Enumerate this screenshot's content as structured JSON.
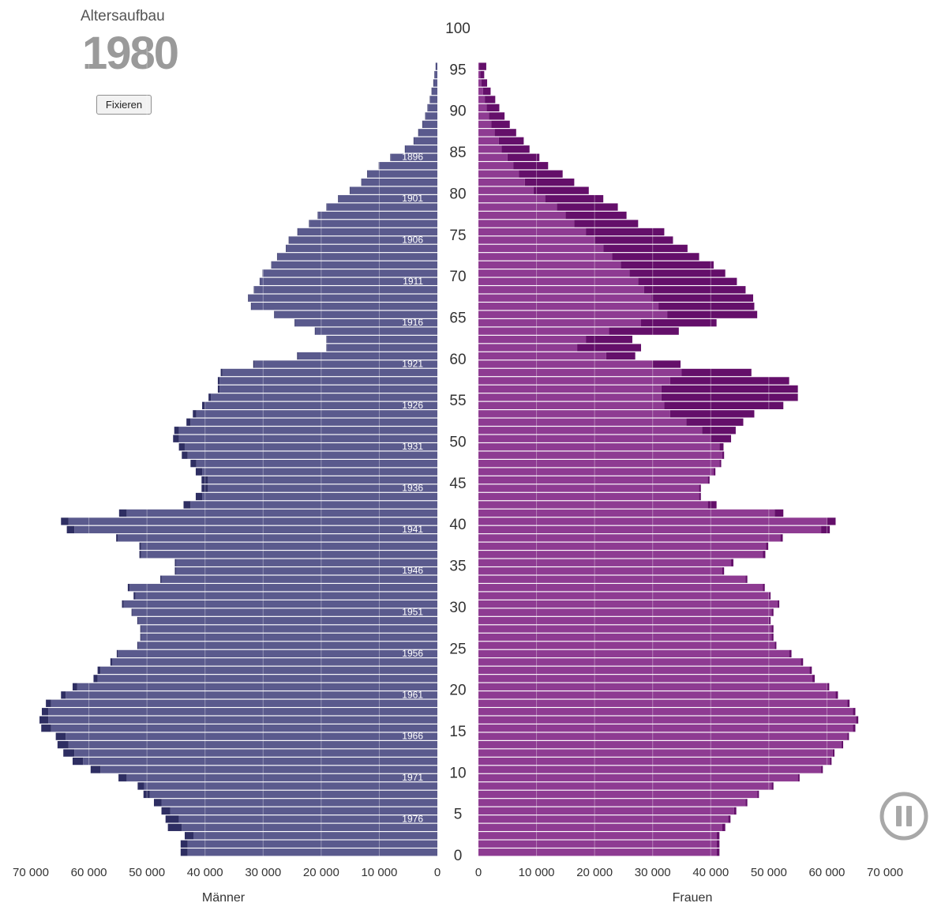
{
  "header": {
    "title": "Altersaufbau",
    "year": "1980",
    "fix_button_label": "Fixieren"
  },
  "controls": {
    "pause_icon": "pause-icon"
  },
  "colors": {
    "male_bar": "#5a5a8d",
    "male_excess": "#2e2e62",
    "female_bar": "#8e3b92",
    "female_excess": "#640f6a",
    "grid": "#ffffff",
    "axis_text": "#333333",
    "year_label": "#ffffff",
    "pause_button": "#a8a8a8"
  },
  "chart_data": {
    "type": "bar",
    "subtype": "population-pyramid",
    "x_ticks_left": [
      "70 000",
      "60 000",
      "50 000",
      "40 000",
      "30 000",
      "20 000",
      "10 000",
      "0"
    ],
    "x_ticks_right": [
      "0",
      "10 000",
      "20 000",
      "30 000",
      "40 000",
      "50 000",
      "60 000",
      "70 000"
    ],
    "xlabel_left": "Männer",
    "xlabel_right": "Frauen",
    "age_ticks": [
      "0",
      "5",
      "10",
      "15",
      "20",
      "25",
      "30",
      "35",
      "40",
      "45",
      "50",
      "55",
      "60",
      "65",
      "70",
      "75",
      "80",
      "85",
      "90",
      "95",
      "100"
    ],
    "birth_year_labels": [
      {
        "age": 4,
        "label": "1976"
      },
      {
        "age": 9,
        "label": "1971"
      },
      {
        "age": 14,
        "label": "1966"
      },
      {
        "age": 19,
        "label": "1961"
      },
      {
        "age": 24,
        "label": "1956"
      },
      {
        "age": 29,
        "label": "1951"
      },
      {
        "age": 34,
        "label": "1946"
      },
      {
        "age": 39,
        "label": "1941"
      },
      {
        "age": 44,
        "label": "1936"
      },
      {
        "age": 49,
        "label": "1931"
      },
      {
        "age": 54,
        "label": "1926"
      },
      {
        "age": 59,
        "label": "1921"
      },
      {
        "age": 64,
        "label": "1916"
      },
      {
        "age": 69,
        "label": "1911"
      },
      {
        "age": 74,
        "label": "1906"
      },
      {
        "age": 79,
        "label": "1901"
      },
      {
        "age": 84,
        "label": "1896"
      }
    ],
    "age_range": [
      0,
      100
    ],
    "xlim": [
      0,
      70000
    ],
    "ages": [
      0,
      1,
      2,
      3,
      4,
      5,
      6,
      7,
      8,
      9,
      10,
      11,
      12,
      13,
      14,
      15,
      16,
      17,
      18,
      19,
      20,
      21,
      22,
      23,
      24,
      25,
      26,
      27,
      28,
      29,
      30,
      31,
      32,
      33,
      34,
      35,
      36,
      37,
      38,
      39,
      40,
      41,
      42,
      43,
      44,
      45,
      46,
      47,
      48,
      49,
      50,
      51,
      52,
      53,
      54,
      55,
      56,
      57,
      58,
      59,
      60,
      61,
      62,
      63,
      64,
      65,
      66,
      67,
      68,
      69,
      70,
      71,
      72,
      73,
      74,
      75,
      76,
      77,
      78,
      79,
      80,
      81,
      82,
      83,
      84,
      85,
      86,
      87,
      88,
      89,
      90,
      91,
      92,
      93,
      94,
      95
    ],
    "series": [
      {
        "name": "Männer",
        "values": [
          43000,
          43000,
          42000,
          44000,
          44500,
          46000,
          47500,
          49500,
          50500,
          53500,
          58000,
          61000,
          62500,
          63500,
          64000,
          66500,
          67000,
          67000,
          66500,
          64000,
          62000,
          58500,
          58000,
          56000,
          55000,
          51500,
          51000,
          51000,
          51500,
          52500,
          54000,
          52000,
          53000,
          47500,
          45000,
          45000,
          51000,
          51000,
          55000,
          62500,
          63500,
          53500,
          42500,
          40500,
          39500,
          39500,
          40500,
          41500,
          43000,
          43500,
          44500,
          44500,
          42500,
          41500,
          40000,
          39000,
          37500,
          37500,
          37000,
          31500,
          24000,
          19000,
          19000,
          21000,
          24500,
          28000,
          32000,
          32500,
          31500,
          30500,
          30000,
          28500,
          27500,
          26000,
          25500,
          24000,
          22000,
          20500,
          19000,
          17000,
          15000,
          13000,
          12000,
          10000,
          8000,
          5500,
          4000,
          3200,
          2500,
          2000,
          1600,
          1200,
          900,
          600,
          400,
          200
        ]
      },
      {
        "name": "Männer (Überschuss)",
        "values": [
          1200,
          1200,
          1500,
          2400,
          2300,
          1500,
          1300,
          1100,
          1100,
          1400,
          1700,
          1800,
          1900,
          1900,
          1700,
          1700,
          1500,
          1100,
          900,
          800,
          800,
          700,
          500,
          300,
          200,
          150,
          150,
          150,
          150,
          150,
          300,
          300,
          300,
          200,
          200,
          200,
          300,
          300,
          300,
          1300,
          1300,
          1300,
          1200,
          1100,
          1100,
          1100,
          1100,
          1000,
          1000,
          1000,
          1000,
          800,
          700,
          600,
          500,
          400,
          300,
          300,
          300,
          200,
          150,
          100,
          100,
          100,
          100,
          100,
          100,
          100,
          100,
          100,
          100,
          100,
          100,
          100,
          100,
          100,
          100,
          100,
          100,
          100,
          100,
          100,
          100,
          100,
          100,
          100,
          100,
          100,
          100,
          100,
          100,
          100,
          100,
          100,
          100,
          100
        ]
      },
      {
        "name": "Frauen",
        "values": [
          41000,
          41000,
          41000,
          42000,
          43000,
          44000,
          46000,
          48000,
          50500,
          55000,
          59000,
          60500,
          61000,
          62500,
          63500,
          64500,
          65000,
          64500,
          63500,
          61500,
          60000,
          57500,
          57000,
          55500,
          53500,
          51000,
          50500,
          50500,
          50000,
          50500,
          51500,
          50000,
          49000,
          46000,
          42000,
          43500,
          49000,
          49500,
          52000,
          59000,
          60000,
          51000,
          39500,
          38000,
          38000,
          39500,
          40500,
          41500,
          42000,
          41500,
          40000,
          38500,
          35800,
          33000,
          32000,
          31500,
          31500,
          33000,
          35000,
          30000,
          22000,
          17000,
          18500,
          22500,
          28000,
          32500,
          31000,
          29800,
          28500,
          27500,
          26000,
          24500,
          23000,
          21500,
          20000,
          18500,
          16500,
          15000,
          13500,
          11500,
          9500,
          8000,
          7000,
          6000,
          5000,
          4000,
          3500,
          2800,
          2200,
          1800,
          1400,
          1100,
          800,
          500,
          300,
          150
        ]
      },
      {
        "name": "Frauen (Überschuss)",
        "values": [
          500,
          500,
          500,
          500,
          400,
          400,
          300,
          300,
          300,
          300,
          300,
          300,
          300,
          300,
          300,
          400,
          400,
          400,
          400,
          400,
          400,
          400,
          400,
          400,
          400,
          300,
          300,
          300,
          300,
          300,
          300,
          300,
          300,
          300,
          300,
          400,
          400,
          400,
          400,
          1500,
          1500,
          1500,
          1500,
          300,
          300,
          300,
          300,
          300,
          300,
          700,
          3500,
          5800,
          9800,
          14500,
          20500,
          23500,
          23500,
          20500,
          12000,
          4800,
          5000,
          11000,
          8000,
          12000,
          13000,
          15500,
          16500,
          17500,
          17500,
          17000,
          16500,
          16000,
          15000,
          14500,
          13500,
          13500,
          11000,
          10500,
          10500,
          10000,
          9500,
          8500,
          7500,
          6000,
          5500,
          4800,
          4300,
          3700,
          3200,
          2700,
          2200,
          1800,
          1300,
          1000,
          700,
          1200
        ]
      }
    ]
  }
}
